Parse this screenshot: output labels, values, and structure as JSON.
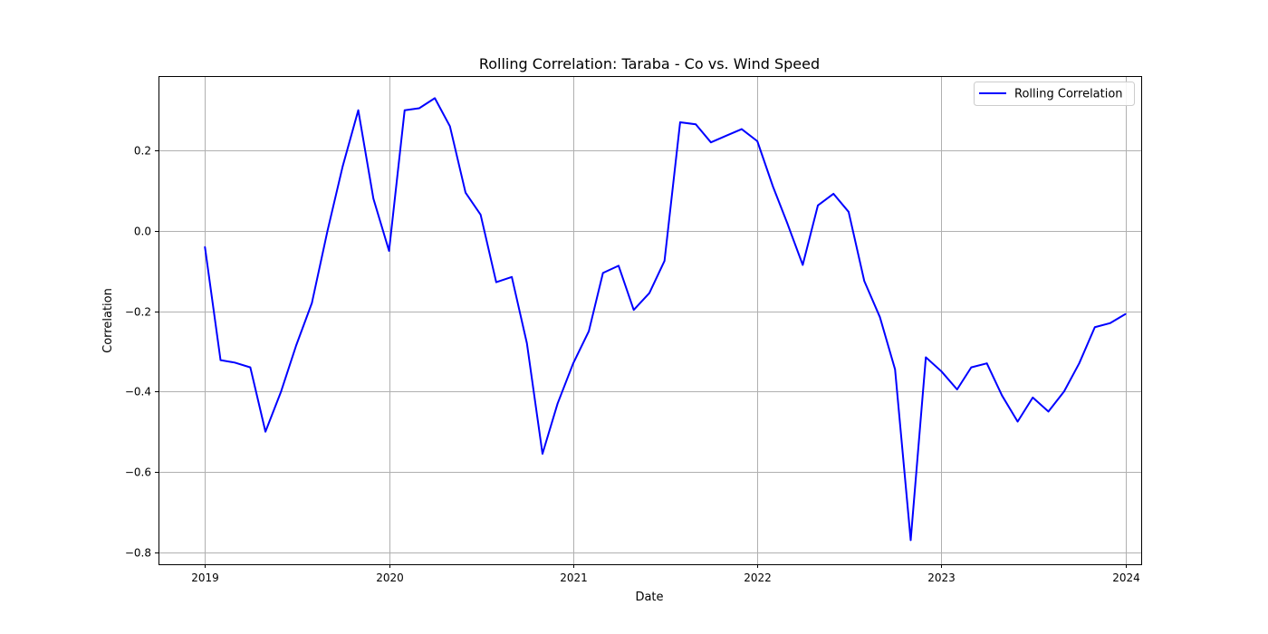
{
  "chart_data": {
    "type": "line",
    "title": "Rolling Correlation: Taraba - Co vs. Wind Speed",
    "xlabel": "Date",
    "ylabel": "Correlation",
    "xlim": [
      "2018-10-01",
      "2024-02-01"
    ],
    "ylim": [
      -0.83,
      0.385
    ],
    "x_ticks": [
      "2019",
      "2020",
      "2021",
      "2022",
      "2023",
      "2024"
    ],
    "y_ticks": [
      -0.8,
      -0.6,
      -0.4,
      -0.2,
      0.0,
      0.2
    ],
    "y_tick_labels": [
      "−0.8",
      "−0.6",
      "−0.4",
      "−0.2",
      "0.0",
      "0.2"
    ],
    "grid": true,
    "legend_position": "top-right",
    "series": [
      {
        "name": "Rolling Correlation",
        "color": "#0000ff",
        "x": [
          "2019-01",
          "2019-02",
          "2019-03",
          "2019-04",
          "2019-05",
          "2019-06",
          "2019-07",
          "2019-08",
          "2019-09",
          "2019-10",
          "2019-11",
          "2019-12",
          "2020-01",
          "2020-02",
          "2020-03",
          "2020-04",
          "2020-05",
          "2020-06",
          "2020-07",
          "2020-08",
          "2020-09",
          "2020-10",
          "2020-11",
          "2020-12",
          "2021-01",
          "2021-02",
          "2021-03",
          "2021-04",
          "2021-05",
          "2021-06",
          "2021-07",
          "2021-08",
          "2021-09",
          "2021-10",
          "2021-11",
          "2021-12",
          "2022-01",
          "2022-02",
          "2022-03",
          "2022-04",
          "2022-05",
          "2022-06",
          "2022-07",
          "2022-08",
          "2022-09",
          "2022-10",
          "2022-11",
          "2022-12",
          "2023-01",
          "2023-02",
          "2023-03",
          "2023-04",
          "2023-05",
          "2023-06",
          "2023-07",
          "2023-08",
          "2023-09",
          "2023-10",
          "2023-11",
          "2023-12",
          "2024-01"
        ],
        "y": [
          -0.04,
          -0.322,
          -0.328,
          -0.34,
          -0.5,
          -0.4,
          -0.285,
          -0.18,
          0.0,
          0.16,
          0.3,
          0.08,
          -0.05,
          0.3,
          0.305,
          0.33,
          0.26,
          0.095,
          0.04,
          -0.128,
          -0.115,
          -0.28,
          -0.555,
          -0.43,
          -0.33,
          -0.25,
          -0.105,
          -0.087,
          -0.197,
          -0.155,
          -0.075,
          0.27,
          0.265,
          0.22,
          0.237,
          0.253,
          0.223,
          0.11,
          0.02,
          -0.085,
          0.063,
          0.092,
          0.047,
          -0.125,
          -0.215,
          -0.345,
          -0.77,
          -0.315,
          -0.35,
          -0.395,
          -0.34,
          -0.33,
          -0.41,
          -0.475,
          -0.415,
          -0.45,
          -0.4,
          -0.33,
          -0.24,
          -0.23,
          -0.207
        ]
      }
    ]
  }
}
